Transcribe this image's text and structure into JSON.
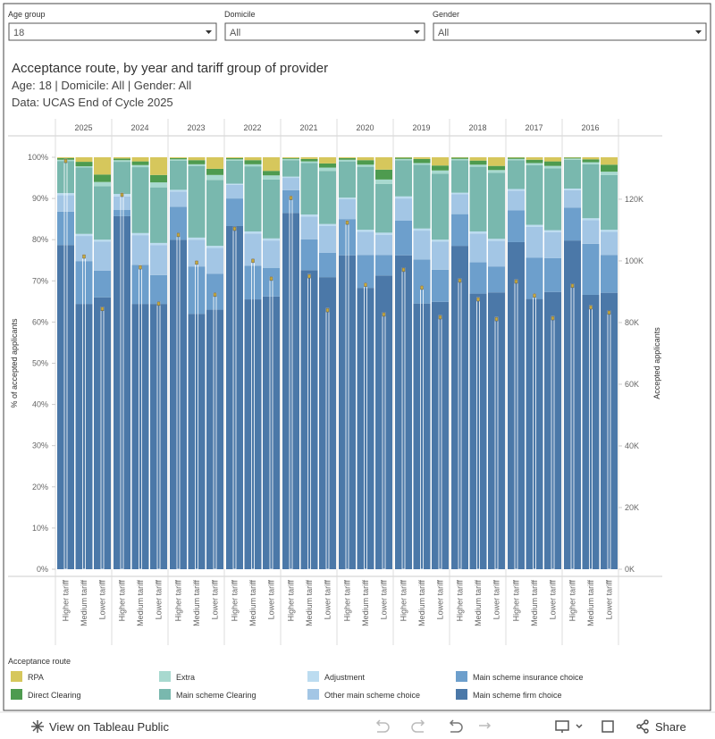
{
  "filters": [
    {
      "label": "Age group",
      "value": "18"
    },
    {
      "label": "Domicile",
      "value": "All"
    },
    {
      "label": "Gender",
      "value": "All"
    }
  ],
  "chart_data": {
    "type": "stacked_bar",
    "title": "Acceptance route, by year and tariff group of provider",
    "subtitle": "Age: 18 | Domicile: All | Gender: All",
    "source": "Data: UCAS End of Cycle 2025",
    "years": [
      "2025",
      "2024",
      "2023",
      "2022",
      "2021",
      "2020",
      "2019",
      "2018",
      "2017",
      "2016"
    ],
    "tariffs": [
      "Higher tariff",
      "Medium tariff",
      "Lower tariff"
    ],
    "ylabel": "% of accepted applicants",
    "y2label": "Accepted applicants",
    "ylim": [
      0,
      100
    ],
    "yticks": [
      {
        "value": 0,
        "label": "0%"
      },
      {
        "value": 10,
        "label": "10%"
      },
      {
        "value": 20,
        "label": "20%"
      },
      {
        "value": 30,
        "label": "30%"
      },
      {
        "value": 40,
        "label": "40%"
      },
      {
        "value": 50,
        "label": "50%"
      },
      {
        "value": 60,
        "label": "60%"
      },
      {
        "value": 70,
        "label": "70%"
      },
      {
        "value": 80,
        "label": "80%"
      },
      {
        "value": 90,
        "label": "90%"
      },
      {
        "value": 100,
        "label": "100%"
      }
    ],
    "y2lim": [
      0,
      133600
    ],
    "y2ticks": [
      {
        "value": 0,
        "label": "0K"
      },
      {
        "value": 20000,
        "label": "20K"
      },
      {
        "value": 40000,
        "label": "40K"
      },
      {
        "value": 60000,
        "label": "60K"
      },
      {
        "value": 80000,
        "label": "80K"
      },
      {
        "value": 100000,
        "label": "100K"
      },
      {
        "value": 120000,
        "label": "120K"
      }
    ],
    "legend_title": "Acceptance route",
    "series": [
      {
        "name": "RPA",
        "color": "#d6c75c",
        "values": [
          0.2,
          1.1,
          4.2,
          0.3,
          1.0,
          4.3,
          0.2,
          0.7,
          2.8,
          0.2,
          0.7,
          3.3,
          0.2,
          0.4,
          1.5,
          0.2,
          0.7,
          3.0,
          0.1,
          0.4,
          2.0,
          0.1,
          0.8,
          2.1,
          0.1,
          0.6,
          1.0,
          0.1,
          0.5,
          1.8
        ]
      },
      {
        "name": "Direct Clearing",
        "color": "#4e9b4f",
        "values": [
          0.4,
          1.1,
          1.8,
          0.4,
          0.9,
          1.8,
          0.3,
          1.0,
          1.5,
          0.3,
          1.0,
          1.1,
          0.2,
          0.6,
          1.0,
          0.4,
          1.1,
          2.4,
          0.3,
          1.0,
          1.2,
          0.3,
          1.0,
          1.0,
          0.3,
          0.8,
          1.1,
          0.2,
          0.7,
          1.7
        ]
      },
      {
        "name": "Extra",
        "color": "#a8d9cf",
        "values": [
          0.3,
          0.3,
          1.0,
          0.4,
          0.5,
          1.2,
          0.3,
          0.4,
          1.2,
          0.3,
          0.5,
          1.0,
          0.3,
          0.4,
          0.8,
          0.4,
          0.5,
          1.1,
          0.3,
          0.4,
          0.8,
          0.3,
          0.5,
          0.7,
          0.3,
          0.5,
          0.6,
          0.3,
          0.5,
          0.8
        ]
      },
      {
        "name": "Main scheme Clearing",
        "color": "#79b8ae",
        "values": [
          7.8,
          16.1,
          13.0,
          7.8,
          16.0,
          13.5,
          7.1,
          17.4,
          16.0,
          5.6,
          15.8,
          14.3,
          4.0,
          12.5,
          12.9,
          8.8,
          15.3,
          11.8,
          8.8,
          15.5,
          16.0,
          7.9,
          15.7,
          16.0,
          7.0,
          14.5,
          15.0,
          7.0,
          13.1,
          13.3
        ]
      },
      {
        "name": "Adjustment",
        "color": "#bcdcf0",
        "values": [
          0.5,
          0.5,
          0.5,
          0.6,
          0.5,
          0.5,
          0.4,
          0.5,
          0.5,
          0.3,
          0.5,
          0.5,
          0.3,
          0.5,
          0.5,
          0.4,
          0.5,
          0.5,
          0.5,
          0.5,
          0.5,
          0.4,
          0.5,
          0.5,
          0.4,
          0.5,
          0.5,
          0.4,
          0.5,
          0.5
        ]
      },
      {
        "name": "Other main scheme choice",
        "color": "#a3c6e5",
        "values": [
          4.0,
          6.1,
          7.0,
          3.3,
          7.2,
          7.3,
          3.7,
          6.5,
          6.3,
          3.3,
          7.8,
          6.7,
          3.0,
          5.5,
          6.5,
          4.8,
          5.6,
          4.9,
          5.4,
          7.0,
          6.8,
          4.8,
          7.0,
          6.2,
          4.8,
          7.5,
          6.3,
          4.2,
          5.7,
          5.6
        ]
      },
      {
        "name": "Main scheme insurance choice",
        "color": "#6d9fcc",
        "values": [
          8.1,
          10.4,
          6.5,
          1.5,
          9.5,
          7.0,
          8.0,
          11.5,
          8.7,
          6.7,
          8.2,
          6.9,
          5.5,
          7.5,
          5.9,
          8.8,
          8.0,
          5.0,
          8.4,
          10.7,
          7.8,
          7.7,
          7.6,
          6.3,
          7.7,
          10.0,
          8.2,
          8.0,
          12.4,
          9.2
        ]
      },
      {
        "name": "Main scheme firm choice",
        "color": "#4b78a8",
        "values": [
          78.7,
          64.4,
          66.0,
          85.7,
          64.4,
          64.4,
          80.0,
          62.0,
          63.0,
          83.3,
          65.5,
          66.2,
          86.5,
          72.6,
          70.9,
          76.2,
          68.3,
          71.3,
          76.2,
          64.5,
          64.9,
          78.5,
          66.9,
          67.2,
          79.4,
          65.6,
          67.3,
          79.8,
          66.6,
          67.1
        ]
      }
    ],
    "applicants": {
      "axis": "y2",
      "color": "#c9ab3a",
      "values": [
        133000,
        102000,
        85000,
        122000,
        98500,
        86700,
        109000,
        100000,
        89600,
        111000,
        100600,
        94800,
        121000,
        95600,
        84600,
        113000,
        92800,
        83200,
        97700,
        91900,
        82300,
        94200,
        88100,
        81700,
        93900,
        89300,
        82000,
        92500,
        85500,
        83800
      ]
    }
  },
  "footer": {
    "link": "View on Tableau Public",
    "share": "Share"
  }
}
